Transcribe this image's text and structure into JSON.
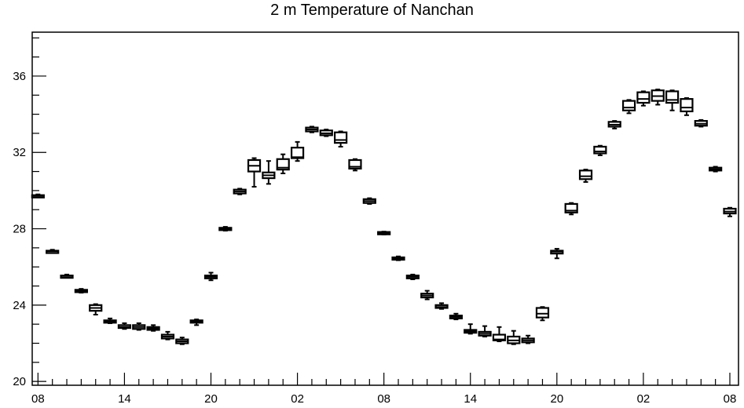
{
  "chart_data": {
    "type": "boxplot",
    "title": "2 m Temperature of Nanchan",
    "xlabel": "",
    "ylabel": "",
    "ylim": [
      19.8,
      38.3
    ],
    "y_ticks": [
      20,
      24,
      28,
      32,
      36
    ],
    "y_tick_labels": [
      "20",
      "24",
      "28",
      "32",
      "36"
    ],
    "x_ticks": [
      0,
      6,
      12,
      18,
      24,
      30,
      36,
      42,
      48
    ],
    "x_tick_labels": [
      "08",
      "14",
      "20",
      "02",
      "08",
      "14",
      "20",
      "02",
      "08"
    ],
    "x_unit": "hour offset",
    "xlim": [
      -0.4,
      48.6
    ],
    "grid": false,
    "boxes": [
      {
        "x": 0,
        "min": 29.65,
        "q1": 29.68,
        "median": 29.72,
        "q3": 29.76,
        "max": 29.8
      },
      {
        "x": 1,
        "min": 26.75,
        "q1": 26.78,
        "median": 26.82,
        "q3": 26.85,
        "max": 26.9
      },
      {
        "x": 2,
        "min": 25.45,
        "q1": 25.48,
        "median": 25.52,
        "q3": 25.55,
        "max": 25.6
      },
      {
        "x": 3,
        "min": 24.65,
        "q1": 24.7,
        "median": 24.75,
        "q3": 24.8,
        "max": 24.85
      },
      {
        "x": 4,
        "min": 23.5,
        "q1": 23.7,
        "median": 23.85,
        "q3": 24.0,
        "max": 24.05
      },
      {
        "x": 5,
        "min": 23.05,
        "q1": 23.1,
        "median": 23.15,
        "q3": 23.2,
        "max": 23.3
      },
      {
        "x": 6,
        "min": 22.75,
        "q1": 22.8,
        "median": 22.85,
        "q3": 22.95,
        "max": 23.05
      },
      {
        "x": 7,
        "min": 22.7,
        "q1": 22.75,
        "median": 22.85,
        "q3": 22.95,
        "max": 23.05
      },
      {
        "x": 8,
        "min": 22.65,
        "q1": 22.7,
        "median": 22.78,
        "q3": 22.85,
        "max": 22.95
      },
      {
        "x": 9,
        "min": 22.2,
        "q1": 22.25,
        "median": 22.35,
        "q3": 22.45,
        "max": 22.6
      },
      {
        "x": 10,
        "min": 21.95,
        "q1": 22.0,
        "median": 22.1,
        "q3": 22.2,
        "max": 22.3
      },
      {
        "x": 11,
        "min": 22.95,
        "q1": 23.1,
        "median": 23.15,
        "q3": 23.2,
        "max": 23.25
      },
      {
        "x": 12,
        "min": 25.3,
        "q1": 25.4,
        "median": 25.48,
        "q3": 25.55,
        "max": 25.7
      },
      {
        "x": 13,
        "min": 27.9,
        "q1": 27.95,
        "median": 28.0,
        "q3": 28.05,
        "max": 28.1
      },
      {
        "x": 14,
        "min": 29.8,
        "q1": 29.85,
        "median": 29.95,
        "q3": 30.05,
        "max": 30.1
      },
      {
        "x": 15,
        "min": 30.2,
        "q1": 31.0,
        "median": 31.3,
        "q3": 31.6,
        "max": 31.7
      },
      {
        "x": 16,
        "min": 30.35,
        "q1": 30.65,
        "median": 30.8,
        "q3": 30.95,
        "max": 31.55
      },
      {
        "x": 17,
        "min": 30.9,
        "q1": 31.1,
        "median": 31.2,
        "q3": 31.65,
        "max": 31.9
      },
      {
        "x": 18,
        "min": 31.55,
        "q1": 31.7,
        "median": 31.75,
        "q3": 32.25,
        "max": 32.55
      },
      {
        "x": 19,
        "min": 33.05,
        "q1": 33.1,
        "median": 33.2,
        "q3": 33.3,
        "max": 33.35
      },
      {
        "x": 20,
        "min": 32.85,
        "q1": 32.9,
        "median": 33.0,
        "q3": 33.15,
        "max": 33.2
      },
      {
        "x": 21,
        "min": 32.3,
        "q1": 32.5,
        "median": 32.65,
        "q3": 33.05,
        "max": 33.1
      },
      {
        "x": 22,
        "min": 31.05,
        "q1": 31.15,
        "median": 31.25,
        "q3": 31.6,
        "max": 31.65
      },
      {
        "x": 23,
        "min": 29.3,
        "q1": 29.35,
        "median": 29.45,
        "q3": 29.55,
        "max": 29.6
      },
      {
        "x": 24,
        "min": 27.7,
        "q1": 27.72,
        "median": 27.78,
        "q3": 27.83,
        "max": 27.85
      },
      {
        "x": 25,
        "min": 26.35,
        "q1": 26.4,
        "median": 26.45,
        "q3": 26.5,
        "max": 26.55
      },
      {
        "x": 26,
        "min": 25.35,
        "q1": 25.4,
        "median": 25.48,
        "q3": 25.55,
        "max": 25.6
      },
      {
        "x": 27,
        "min": 24.3,
        "q1": 24.4,
        "median": 24.5,
        "q3": 24.6,
        "max": 24.75
      },
      {
        "x": 28,
        "min": 23.8,
        "q1": 23.85,
        "median": 23.9,
        "q3": 24.0,
        "max": 24.1
      },
      {
        "x": 29,
        "min": 23.25,
        "q1": 23.3,
        "median": 23.38,
        "q3": 23.45,
        "max": 23.55
      },
      {
        "x": 30,
        "min": 22.5,
        "q1": 22.55,
        "median": 22.62,
        "q3": 22.7,
        "max": 23.0
      },
      {
        "x": 31,
        "min": 22.35,
        "q1": 22.4,
        "median": 22.5,
        "q3": 22.6,
        "max": 22.9
      },
      {
        "x": 32,
        "min": 22.1,
        "q1": 22.15,
        "median": 22.2,
        "q3": 22.45,
        "max": 22.85
      },
      {
        "x": 33,
        "min": 21.95,
        "q1": 22.0,
        "median": 22.15,
        "q3": 22.35,
        "max": 22.65
      },
      {
        "x": 34,
        "min": 22.0,
        "q1": 22.05,
        "median": 22.15,
        "q3": 22.25,
        "max": 22.4
      },
      {
        "x": 35,
        "min": 23.2,
        "q1": 23.35,
        "median": 23.55,
        "q3": 23.85,
        "max": 23.9
      },
      {
        "x": 36,
        "min": 26.45,
        "q1": 26.7,
        "median": 26.8,
        "q3": 26.85,
        "max": 26.95
      },
      {
        "x": 37,
        "min": 28.75,
        "q1": 28.85,
        "median": 28.95,
        "q3": 29.3,
        "max": 29.35
      },
      {
        "x": 38,
        "min": 30.45,
        "q1": 30.6,
        "median": 30.75,
        "q3": 31.05,
        "max": 31.1
      },
      {
        "x": 39,
        "min": 31.85,
        "q1": 31.95,
        "median": 32.05,
        "q3": 32.3,
        "max": 32.35
      },
      {
        "x": 40,
        "min": 33.25,
        "q1": 33.35,
        "median": 33.45,
        "q3": 33.6,
        "max": 33.65
      },
      {
        "x": 41,
        "min": 34.05,
        "q1": 34.2,
        "median": 34.35,
        "q3": 34.7,
        "max": 34.75
      },
      {
        "x": 42,
        "min": 34.45,
        "q1": 34.6,
        "median": 34.8,
        "q3": 35.15,
        "max": 35.2
      },
      {
        "x": 43,
        "min": 34.5,
        "q1": 34.7,
        "median": 34.95,
        "q3": 35.25,
        "max": 35.3
      },
      {
        "x": 44,
        "min": 34.2,
        "q1": 34.6,
        "median": 34.75,
        "q3": 35.2,
        "max": 35.25
      },
      {
        "x": 45,
        "min": 33.95,
        "q1": 34.15,
        "median": 34.35,
        "q3": 34.8,
        "max": 34.85
      },
      {
        "x": 46,
        "min": 33.35,
        "q1": 33.4,
        "median": 33.5,
        "q3": 33.65,
        "max": 33.7
      },
      {
        "x": 47,
        "min": 31.0,
        "q1": 31.05,
        "median": 31.12,
        "q3": 31.2,
        "max": 31.25
      },
      {
        "x": 48,
        "min": 28.65,
        "q1": 28.8,
        "median": 28.9,
        "q3": 29.05,
        "max": 29.1
      }
    ]
  }
}
